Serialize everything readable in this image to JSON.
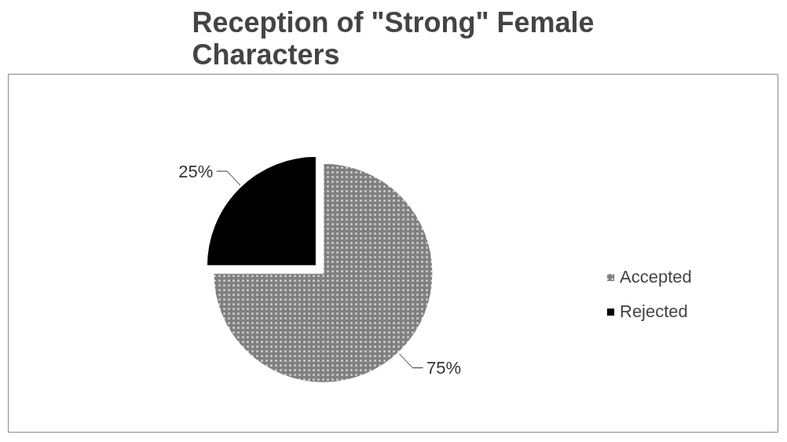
{
  "chart_data": {
    "type": "pie",
    "title": "Reception of \"Strong\" Female Characters",
    "categories": [
      "Accepted",
      "Rejected"
    ],
    "values": [
      75,
      25
    ],
    "colors": [
      "#808080",
      "#000000"
    ],
    "value_labels": [
      "75%",
      "25%"
    ],
    "legend": "right"
  }
}
